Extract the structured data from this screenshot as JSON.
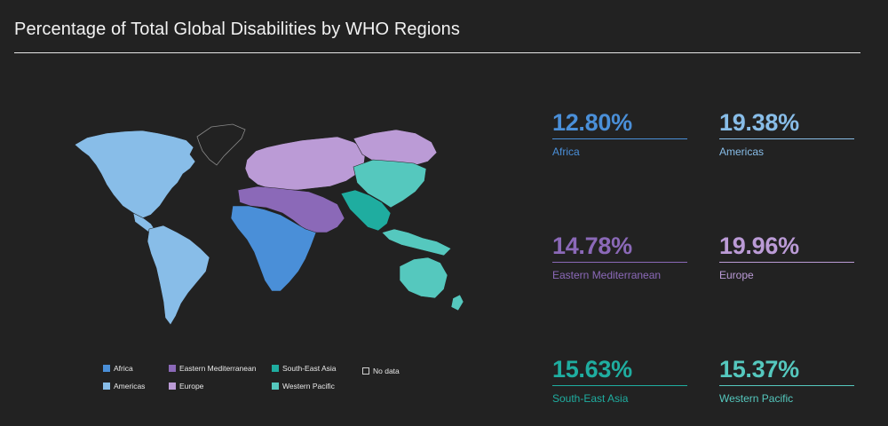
{
  "title": "Percentage of Total Global Disabilities by WHO Regions",
  "colors": {
    "background": "#222222",
    "africa": "#4a8fd8",
    "americas": "#88bde8",
    "eastern_mediterranean": "#8b69b8",
    "europe": "#bb9bd6",
    "south_east_asia": "#1fada0",
    "western_pacific": "#55c8be",
    "no_data": "#222222"
  },
  "stats": [
    {
      "value": "12.80%",
      "label": "Africa",
      "color": "#4a8fd8"
    },
    {
      "value": "19.38%",
      "label": "Americas",
      "color": "#88bde8"
    },
    {
      "value": "14.78%",
      "label": "Eastern Mediterranean",
      "color": "#8b69b8"
    },
    {
      "value": "19.96%",
      "label": "Europe",
      "color": "#bb9bd6"
    },
    {
      "value": "15.63%",
      "label": "South-East Asia",
      "color": "#1fada0"
    },
    {
      "value": "15.37%",
      "label": "Western Pacific",
      "color": "#55c8be"
    }
  ],
  "legend": [
    {
      "label": "Africa",
      "color": "#4a8fd8"
    },
    {
      "label": "Americas",
      "color": "#88bde8"
    },
    {
      "label": "Eastern Mediterranean",
      "color": "#8b69b8"
    },
    {
      "label": "Europe",
      "color": "#bb9bd6"
    },
    {
      "label": "South-East Asia",
      "color": "#1fada0"
    },
    {
      "label": "Western Pacific",
      "color": "#55c8be"
    },
    {
      "label": "No data",
      "color": "#222222"
    }
  ]
}
